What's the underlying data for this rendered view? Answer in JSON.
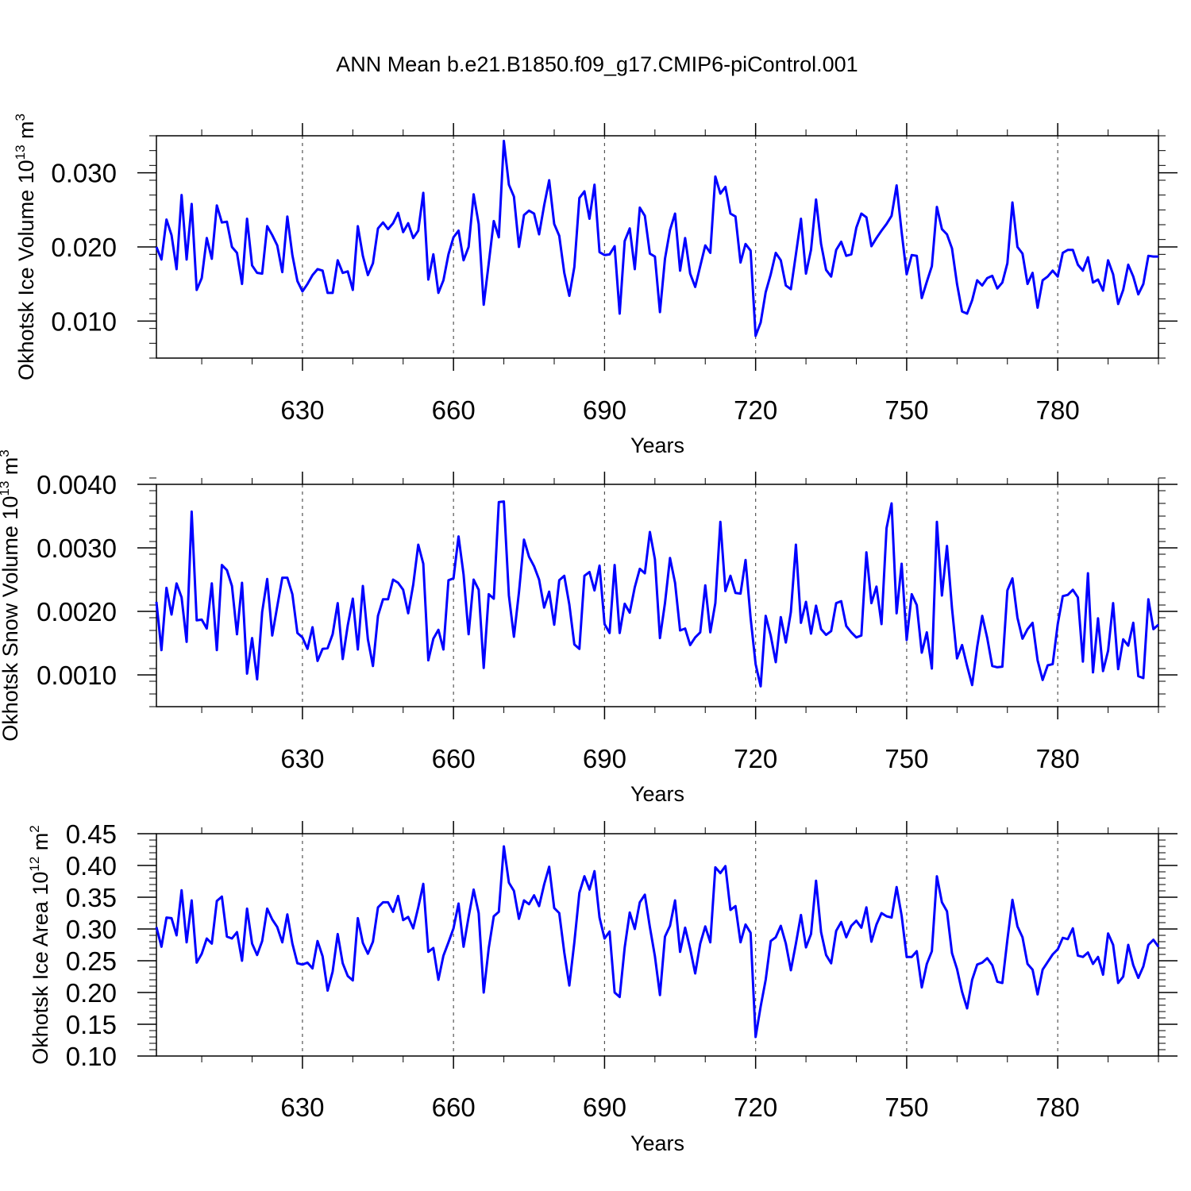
{
  "title": "ANN Mean b.e21.B1850.f09_g17.CMIP6-piControl.001",
  "colors": {
    "series": "#0000ff",
    "axes": "#000000",
    "grid": "#555555"
  },
  "chart_data": [
    {
      "type": "line",
      "ylabel": "Okhotsk Ice Volume 10",
      "ylabel_sup": "13",
      "ylabel_unit": "m",
      "ylabel_unit_sup": "3",
      "xlabel": "Years",
      "xlim": [
        601,
        800
      ],
      "ylim": [
        0.005,
        0.035
      ],
      "xticks": [
        630,
        660,
        690,
        720,
        750,
        780
      ],
      "xtick_labels": [
        "630",
        "660",
        "690",
        "720",
        "750",
        "780"
      ],
      "yticks": [
        0.01,
        0.02,
        0.03
      ],
      "ytick_labels": [
        "0.010",
        "0.020",
        "0.030"
      ],
      "yminor_step": 0.002,
      "x_start": 601,
      "values": [
        0.02,
        0.0183,
        0.0237,
        0.0216,
        0.017,
        0.027,
        0.0183,
        0.0258,
        0.0142,
        0.0158,
        0.0212,
        0.0184,
        0.0256,
        0.0233,
        0.0234,
        0.02,
        0.0192,
        0.015,
        0.0238,
        0.0175,
        0.0165,
        0.0164,
        0.0228,
        0.0216,
        0.0202,
        0.0166,
        0.0241,
        0.0189,
        0.0154,
        0.014,
        0.015,
        0.0162,
        0.017,
        0.0168,
        0.0138,
        0.0138,
        0.0182,
        0.0165,
        0.0167,
        0.0142,
        0.0228,
        0.0188,
        0.0162,
        0.0178,
        0.0225,
        0.0233,
        0.0224,
        0.0232,
        0.0246,
        0.022,
        0.0232,
        0.0212,
        0.0222,
        0.0273,
        0.0156,
        0.019,
        0.0138,
        0.0155,
        0.019,
        0.0213,
        0.0222,
        0.0182,
        0.02,
        0.0271,
        0.0231,
        0.0122,
        0.0178,
        0.0235,
        0.0213,
        0.0343,
        0.0284,
        0.0268,
        0.02,
        0.0243,
        0.0249,
        0.0245,
        0.0217,
        0.0256,
        0.029,
        0.0231,
        0.0215,
        0.0165,
        0.0134,
        0.0173,
        0.0266,
        0.0275,
        0.0238,
        0.0284,
        0.0193,
        0.0189,
        0.019,
        0.0201,
        0.011,
        0.0208,
        0.0225,
        0.017,
        0.0253,
        0.0242,
        0.0191,
        0.0187,
        0.0112,
        0.0184,
        0.0223,
        0.0245,
        0.0168,
        0.0212,
        0.0164,
        0.0146,
        0.0174,
        0.0202,
        0.0192,
        0.0295,
        0.0272,
        0.0281,
        0.0245,
        0.0241,
        0.0179,
        0.0204,
        0.0195,
        0.008,
        0.0098,
        0.0139,
        0.0163,
        0.0192,
        0.0182,
        0.0148,
        0.0143,
        0.019,
        0.0238,
        0.0164,
        0.0196,
        0.0264,
        0.0204,
        0.0169,
        0.016,
        0.0196,
        0.0207,
        0.0188,
        0.019,
        0.0226,
        0.0245,
        0.024,
        0.0201,
        0.0212,
        0.0222,
        0.0231,
        0.0242,
        0.0283,
        0.022,
        0.0163,
        0.0189,
        0.0188,
        0.0131,
        0.0153,
        0.0174,
        0.0254,
        0.0224,
        0.0217,
        0.0198,
        0.015,
        0.0113,
        0.011,
        0.0128,
        0.0155,
        0.0148,
        0.0158,
        0.0161,
        0.0144,
        0.0152,
        0.0178,
        0.026,
        0.02,
        0.0191,
        0.015,
        0.0165,
        0.0118,
        0.0155,
        0.016,
        0.0168,
        0.016,
        0.0192,
        0.0196,
        0.0196,
        0.0176,
        0.0168,
        0.0186,
        0.0152,
        0.0156,
        0.0141,
        0.0182,
        0.0163,
        0.0123,
        0.0142,
        0.0176,
        0.016,
        0.0136,
        0.015,
        0.0188,
        0.0187,
        0.0187
      ]
    },
    {
      "type": "line",
      "ylabel": "Okhotsk Snow Volume 10",
      "ylabel_sup": "13",
      "ylabel_unit": "m",
      "ylabel_unit_sup": "3",
      "xlabel": "Years",
      "xlim": [
        601,
        800
      ],
      "ylim": [
        0.0005,
        0.004
      ],
      "xticks": [
        630,
        660,
        690,
        720,
        750,
        780
      ],
      "xtick_labels": [
        "630",
        "660",
        "690",
        "720",
        "750",
        "780"
      ],
      "yticks": [
        0.001,
        0.002,
        0.003,
        0.004
      ],
      "ytick_labels": [
        "0.0010",
        "0.0020",
        "0.0030",
        "0.0040"
      ],
      "yminor_step": 0.0002,
      "x_start": 601,
      "values": [
        0.00215,
        0.00139,
        0.00237,
        0.00195,
        0.00244,
        0.00222,
        0.00152,
        0.00357,
        0.00186,
        0.00187,
        0.00173,
        0.00244,
        0.00139,
        0.00273,
        0.00265,
        0.0024,
        0.00164,
        0.00245,
        0.00102,
        0.00158,
        0.00093,
        0.00199,
        0.00251,
        0.00162,
        0.00208,
        0.00253,
        0.00253,
        0.00227,
        0.00166,
        0.00159,
        0.00141,
        0.00175,
        0.00122,
        0.00141,
        0.00142,
        0.00164,
        0.00213,
        0.00125,
        0.00178,
        0.0022,
        0.0014,
        0.0024,
        0.00156,
        0.00114,
        0.00193,
        0.00219,
        0.00219,
        0.0025,
        0.00245,
        0.00234,
        0.00197,
        0.00242,
        0.00305,
        0.00275,
        0.00123,
        0.00157,
        0.00171,
        0.0014,
        0.00249,
        0.00252,
        0.00318,
        0.00258,
        0.00164,
        0.0025,
        0.00234,
        0.00111,
        0.00227,
        0.0022,
        0.00372,
        0.00373,
        0.00225,
        0.0016,
        0.0023,
        0.00313,
        0.00286,
        0.00271,
        0.0025,
        0.00206,
        0.00231,
        0.00179,
        0.00249,
        0.00256,
        0.00211,
        0.00148,
        0.00141,
        0.00256,
        0.00262,
        0.00233,
        0.00272,
        0.0018,
        0.00166,
        0.00273,
        0.00166,
        0.00212,
        0.00198,
        0.00238,
        0.00267,
        0.0026,
        0.00325,
        0.00282,
        0.00158,
        0.00213,
        0.00284,
        0.00245,
        0.0017,
        0.00173,
        0.00147,
        0.00159,
        0.00167,
        0.00241,
        0.00167,
        0.00213,
        0.00341,
        0.00232,
        0.00256,
        0.00229,
        0.00228,
        0.00281,
        0.0019,
        0.00117,
        0.00082,
        0.00193,
        0.00162,
        0.0012,
        0.00191,
        0.00151,
        0.00199,
        0.00305,
        0.00182,
        0.00215,
        0.00165,
        0.00209,
        0.00172,
        0.00163,
        0.00169,
        0.00213,
        0.00216,
        0.00177,
        0.00167,
        0.00159,
        0.00162,
        0.00293,
        0.00213,
        0.00239,
        0.0018,
        0.00331,
        0.0037,
        0.00197,
        0.00275,
        0.00155,
        0.00227,
        0.0021,
        0.00135,
        0.00167,
        0.0011,
        0.00341,
        0.00225,
        0.00303,
        0.00205,
        0.00126,
        0.00147,
        0.00114,
        0.00084,
        0.00144,
        0.00193,
        0.00158,
        0.00114,
        0.00112,
        0.00113,
        0.00233,
        0.00252,
        0.0019,
        0.00157,
        0.00172,
        0.00182,
        0.00123,
        0.00092,
        0.00115,
        0.00117,
        0.0018,
        0.00224,
        0.00226,
        0.00234,
        0.00222,
        0.00121,
        0.0026,
        0.00104,
        0.00189,
        0.00106,
        0.00138,
        0.00213,
        0.00109,
        0.00156,
        0.00146,
        0.00182,
        0.00098,
        0.00095,
        0.00219,
        0.00172,
        0.00179
      ]
    },
    {
      "type": "line",
      "ylabel": "Okhotsk Ice Area 10",
      "ylabel_sup": "12",
      "ylabel_unit": "m",
      "ylabel_unit_sup": "2",
      "xlabel": "Years",
      "xlim": [
        601,
        800
      ],
      "ylim": [
        0.1,
        0.45
      ],
      "xticks": [
        630,
        660,
        690,
        720,
        750,
        780
      ],
      "xtick_labels": [
        "630",
        "660",
        "690",
        "720",
        "750",
        "780"
      ],
      "yticks": [
        0.1,
        0.15,
        0.2,
        0.25,
        0.3,
        0.35,
        0.4,
        0.45
      ],
      "ytick_labels": [
        "0.10",
        "0.15",
        "0.20",
        "0.25",
        "0.30",
        "0.35",
        "0.40",
        "0.45"
      ],
      "yminor_step": 0.01,
      "x_start": 601,
      "values": [
        0.303,
        0.272,
        0.318,
        0.317,
        0.29,
        0.361,
        0.279,
        0.345,
        0.247,
        0.261,
        0.285,
        0.277,
        0.344,
        0.351,
        0.288,
        0.285,
        0.295,
        0.25,
        0.332,
        0.277,
        0.259,
        0.281,
        0.332,
        0.315,
        0.303,
        0.279,
        0.323,
        0.277,
        0.246,
        0.244,
        0.247,
        0.238,
        0.281,
        0.257,
        0.203,
        0.233,
        0.292,
        0.246,
        0.226,
        0.219,
        0.317,
        0.278,
        0.261,
        0.28,
        0.334,
        0.342,
        0.342,
        0.327,
        0.352,
        0.314,
        0.319,
        0.301,
        0.334,
        0.371,
        0.264,
        0.27,
        0.22,
        0.258,
        0.279,
        0.301,
        0.34,
        0.272,
        0.319,
        0.362,
        0.325,
        0.2,
        0.27,
        0.32,
        0.327,
        0.43,
        0.373,
        0.36,
        0.316,
        0.345,
        0.339,
        0.353,
        0.336,
        0.37,
        0.398,
        0.333,
        0.325,
        0.263,
        0.211,
        0.279,
        0.357,
        0.383,
        0.362,
        0.391,
        0.318,
        0.285,
        0.296,
        0.2,
        0.193,
        0.271,
        0.326,
        0.3,
        0.342,
        0.354,
        0.303,
        0.257,
        0.196,
        0.288,
        0.305,
        0.345,
        0.264,
        0.302,
        0.269,
        0.23,
        0.277,
        0.304,
        0.279,
        0.397,
        0.388,
        0.399,
        0.33,
        0.336,
        0.279,
        0.307,
        0.294,
        0.13,
        0.178,
        0.22,
        0.281,
        0.287,
        0.305,
        0.277,
        0.235,
        0.277,
        0.322,
        0.271,
        0.292,
        0.376,
        0.295,
        0.259,
        0.246,
        0.297,
        0.311,
        0.287,
        0.305,
        0.313,
        0.302,
        0.334,
        0.28,
        0.307,
        0.325,
        0.32,
        0.318,
        0.366,
        0.321,
        0.256,
        0.256,
        0.265,
        0.208,
        0.245,
        0.265,
        0.383,
        0.342,
        0.328,
        0.262,
        0.237,
        0.201,
        0.175,
        0.22,
        0.244,
        0.247,
        0.254,
        0.243,
        0.217,
        0.215,
        0.283,
        0.346,
        0.304,
        0.287,
        0.245,
        0.236,
        0.197,
        0.236,
        0.248,
        0.26,
        0.268,
        0.286,
        0.284,
        0.301,
        0.258,
        0.256,
        0.263,
        0.245,
        0.256,
        0.228,
        0.293,
        0.275,
        0.215,
        0.225,
        0.275,
        0.243,
        0.223,
        0.241,
        0.275,
        0.283,
        0.272
      ]
    }
  ]
}
